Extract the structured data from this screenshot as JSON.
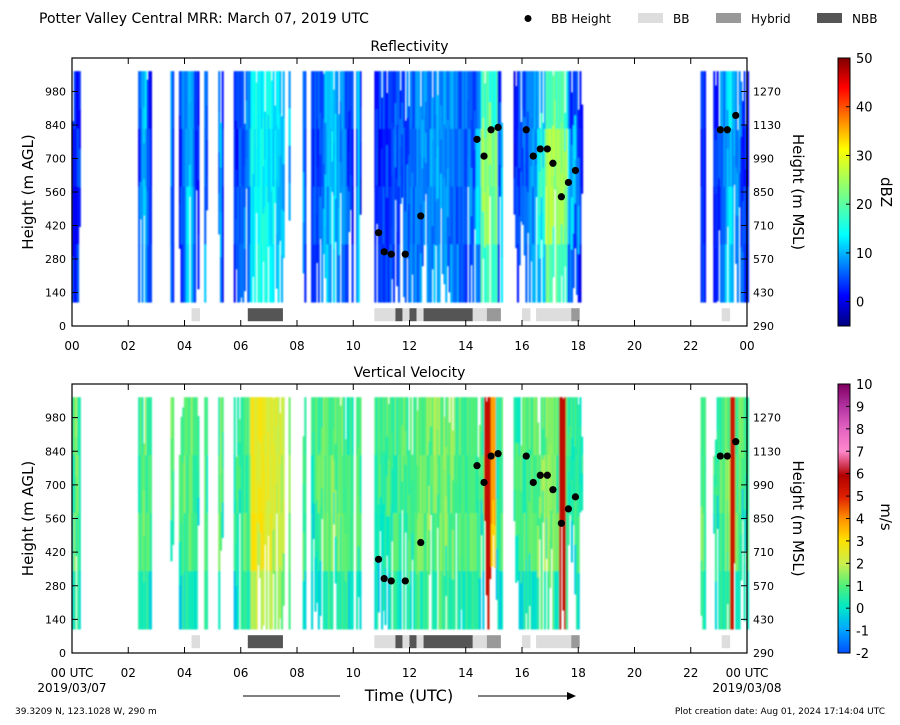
{
  "header": {
    "title": "Potter Valley Central MRR:  March 07, 2019 UTC",
    "legend": [
      {
        "label": "BB Height",
        "marker": "dot",
        "color": "#000000"
      },
      {
        "label": "BB",
        "marker": "box",
        "color": "#dddddd"
      },
      {
        "label": "Hybrid",
        "marker": "box",
        "color": "#999999"
      },
      {
        "label": "NBB",
        "marker": "box",
        "color": "#555555"
      }
    ]
  },
  "footer": {
    "location": "39.3209 N, 123.1028 W, 290 m",
    "creation": "Plot creation date: Aug 01, 2024 17:14:04 UTC",
    "xlabel": "Time (UTC)",
    "start_date": "2019/03/07",
    "end_date": "2019/03/08"
  },
  "chart_data": [
    {
      "type": "heatmap",
      "title": "Reflectivity",
      "ylabel": "Height (m AGL)",
      "y2label": "Height (m MSL)",
      "xlim": [
        0,
        24
      ],
      "ylim": [
        0,
        1120
      ],
      "y2lim": [
        290,
        1410
      ],
      "x_ticks": [
        "00",
        "02",
        "04",
        "06",
        "08",
        "10",
        "12",
        "14",
        "16",
        "18",
        "20",
        "22",
        "00"
      ],
      "y_ticks": [
        0,
        140,
        280,
        420,
        560,
        700,
        840,
        980
      ],
      "y2_ticks": [
        290,
        430,
        570,
        710,
        850,
        990,
        1130,
        1270
      ],
      "colorbar": {
        "label": "dBZ",
        "min": -5,
        "max": 50,
        "ticks": [
          0,
          10,
          20,
          30,
          40,
          50
        ],
        "colormap": "jet"
      },
      "bb_height": [
        [
          10.9,
          390
        ],
        [
          11.1,
          310
        ],
        [
          11.35,
          300
        ],
        [
          11.85,
          300
        ],
        [
          12.4,
          460
        ],
        [
          14.4,
          780
        ],
        [
          14.65,
          710
        ],
        [
          14.9,
          820
        ],
        [
          15.15,
          830
        ],
        [
          16.15,
          820
        ],
        [
          16.4,
          710
        ],
        [
          16.65,
          740
        ],
        [
          16.9,
          740
        ],
        [
          17.1,
          680
        ],
        [
          17.4,
          540
        ],
        [
          17.65,
          600
        ],
        [
          17.9,
          650
        ],
        [
          23.05,
          820
        ],
        [
          23.3,
          820
        ],
        [
          23.6,
          880
        ]
      ],
      "bb_type": [
        {
          "start": 4.25,
          "end": 4.55,
          "type": "BB"
        },
        {
          "start": 6.25,
          "end": 7.5,
          "type": "NBB"
        },
        {
          "start": 10.75,
          "end": 11.5,
          "type": "BB"
        },
        {
          "start": 11.5,
          "end": 11.75,
          "type": "NBB"
        },
        {
          "start": 11.75,
          "end": 12.0,
          "type": "BB"
        },
        {
          "start": 12.0,
          "end": 12.25,
          "type": "NBB"
        },
        {
          "start": 12.25,
          "end": 12.5,
          "type": "BB"
        },
        {
          "start": 12.5,
          "end": 14.25,
          "type": "NBB"
        },
        {
          "start": 14.25,
          "end": 14.75,
          "type": "BB"
        },
        {
          "start": 14.75,
          "end": 15.25,
          "type": "Hybrid"
        },
        {
          "start": 16.0,
          "end": 16.3,
          "type": "BB"
        },
        {
          "start": 16.5,
          "end": 17.75,
          "type": "BB"
        },
        {
          "start": 17.75,
          "end": 18.05,
          "type": "Hybrid"
        },
        {
          "start": 23.1,
          "end": 23.4,
          "type": "BB"
        }
      ]
    },
    {
      "type": "heatmap",
      "title": "Vertical Velocity",
      "ylabel": "Height (m AGL)",
      "y2label": "Height (m MSL)",
      "xlim": [
        0,
        24
      ],
      "ylim": [
        0,
        1120
      ],
      "y2lim": [
        290,
        1410
      ],
      "x_ticks": [
        "00 UTC",
        "02",
        "04",
        "06",
        "08",
        "10",
        "12",
        "14",
        "16",
        "18",
        "20",
        "22",
        "00 UTC"
      ],
      "y_ticks": [
        0,
        140,
        280,
        420,
        560,
        700,
        840,
        980
      ],
      "y2_ticks": [
        290,
        430,
        570,
        710,
        850,
        990,
        1130,
        1270
      ],
      "colorbar": {
        "label": "m/s",
        "min": -2,
        "max": 10,
        "ticks": [
          -2,
          -1,
          0,
          1,
          2,
          3,
          4,
          5,
          6,
          7,
          8,
          9,
          10
        ],
        "colormap": "velocity"
      },
      "bb_height": [
        [
          10.9,
          390
        ],
        [
          11.1,
          310
        ],
        [
          11.35,
          300
        ],
        [
          11.85,
          300
        ],
        [
          12.4,
          460
        ],
        [
          14.4,
          780
        ],
        [
          14.65,
          710
        ],
        [
          14.9,
          820
        ],
        [
          15.15,
          830
        ],
        [
          16.15,
          820
        ],
        [
          16.4,
          710
        ],
        [
          16.65,
          740
        ],
        [
          16.9,
          740
        ],
        [
          17.1,
          680
        ],
        [
          17.4,
          540
        ],
        [
          17.65,
          600
        ],
        [
          17.9,
          650
        ],
        [
          23.05,
          820
        ],
        [
          23.3,
          820
        ],
        [
          23.6,
          880
        ]
      ],
      "bb_type": [
        {
          "start": 4.25,
          "end": 4.55,
          "type": "BB"
        },
        {
          "start": 6.25,
          "end": 7.5,
          "type": "NBB"
        },
        {
          "start": 10.75,
          "end": 11.5,
          "type": "BB"
        },
        {
          "start": 11.5,
          "end": 11.75,
          "type": "NBB"
        },
        {
          "start": 11.75,
          "end": 12.0,
          "type": "BB"
        },
        {
          "start": 12.0,
          "end": 12.25,
          "type": "NBB"
        },
        {
          "start": 12.25,
          "end": 12.5,
          "type": "BB"
        },
        {
          "start": 12.5,
          "end": 14.25,
          "type": "NBB"
        },
        {
          "start": 14.25,
          "end": 14.75,
          "type": "BB"
        },
        {
          "start": 14.75,
          "end": 15.25,
          "type": "Hybrid"
        },
        {
          "start": 16.0,
          "end": 16.3,
          "type": "BB"
        },
        {
          "start": 16.5,
          "end": 17.75,
          "type": "BB"
        },
        {
          "start": 17.75,
          "end": 18.05,
          "type": "Hybrid"
        },
        {
          "start": 23.1,
          "end": 23.4,
          "type": "BB"
        }
      ]
    }
  ]
}
